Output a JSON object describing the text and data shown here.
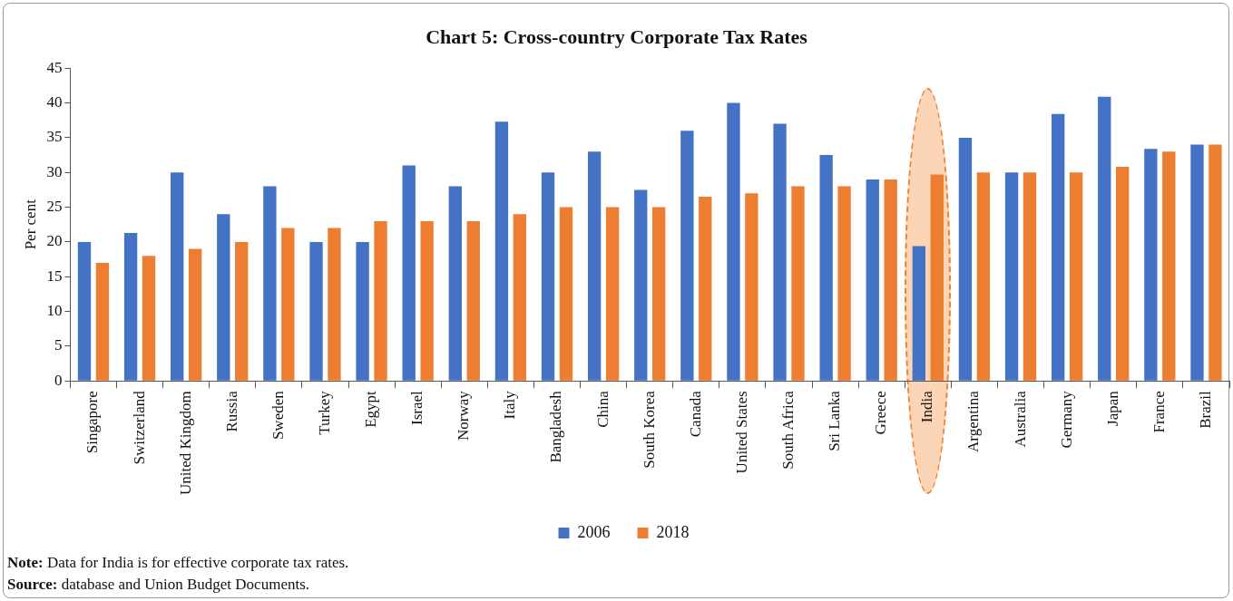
{
  "chart_data": {
    "type": "bar",
    "title": "Chart 5: Cross-country Corporate Tax Rates",
    "ylabel": "Per cent",
    "categories": [
      "Singapore",
      "Switzerland",
      "United Kingdom",
      "Russia",
      "Sweden",
      "Turkey",
      "Egypt",
      "Israel",
      "Norway",
      "Italy",
      "Bangladesh",
      "China",
      "South Korea",
      "Canada",
      "United States",
      "South Africa",
      "Sri Lanka",
      "Greece",
      "India",
      "Argentina",
      "Australia",
      "Germany",
      "Japan",
      "France",
      "Brazil"
    ],
    "series": [
      {
        "name": "2006",
        "color": "#4472c4",
        "values": [
          20,
          21.3,
          30,
          24,
          28,
          20,
          20,
          31,
          28,
          37.3,
          30,
          33,
          27.5,
          36,
          40,
          37,
          32.5,
          29,
          19.4,
          35,
          30,
          38.4,
          40.9,
          33.4,
          34
        ]
      },
      {
        "name": "2018",
        "color": "#ed7d31",
        "values": [
          17,
          18,
          19,
          20,
          22,
          22,
          23,
          23,
          23,
          24,
          25,
          25,
          25,
          26.5,
          27,
          28,
          28,
          29,
          29.7,
          30,
          30,
          30,
          30.8,
          33,
          34
        ]
      }
    ],
    "ylim": [
      0,
      45
    ],
    "yticks": [
      0,
      5,
      10,
      15,
      20,
      25,
      30,
      35,
      40,
      45
    ],
    "grid": false,
    "legend": "bottom",
    "bands": [
      {
        "axis": "x",
        "from": "India",
        "to": "India",
        "color": "#fbd5b5"
      }
    ],
    "annotations": [
      "Note: Data for India is for effective corporate tax rates.",
      "Source: database and Union Budget Documents."
    ]
  }
}
